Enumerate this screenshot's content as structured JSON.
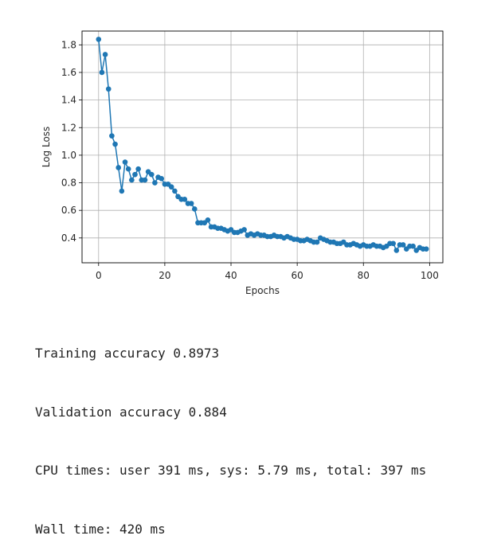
{
  "chart_data": {
    "type": "line",
    "title": "",
    "xlabel": "Epochs",
    "ylabel": "Log Loss",
    "xlim": [
      -5,
      104
    ],
    "ylim": [
      0.22,
      1.9
    ],
    "xticks": [
      0,
      20,
      40,
      60,
      80,
      100
    ],
    "yticks": [
      0.4,
      0.6,
      0.8,
      1.0,
      1.2,
      1.4,
      1.6,
      1.8
    ],
    "xtick_labels": [
      "0",
      "20",
      "40",
      "60",
      "80",
      "100"
    ],
    "ytick_labels": [
      "0.4",
      "0.6",
      "0.8",
      "1.0",
      "1.2",
      "1.4",
      "1.6",
      "1.8"
    ],
    "grid": true,
    "legend": "none",
    "markers": true,
    "color": "#1f77b4",
    "x": [
      0,
      1,
      2,
      3,
      4,
      5,
      6,
      7,
      8,
      9,
      10,
      11,
      12,
      13,
      14,
      15,
      16,
      17,
      18,
      19,
      20,
      21,
      22,
      23,
      24,
      25,
      26,
      27,
      28,
      29,
      30,
      31,
      32,
      33,
      34,
      35,
      36,
      37,
      38,
      39,
      40,
      41,
      42,
      43,
      44,
      45,
      46,
      47,
      48,
      49,
      50,
      51,
      52,
      53,
      54,
      55,
      56,
      57,
      58,
      59,
      60,
      61,
      62,
      63,
      64,
      65,
      66,
      67,
      68,
      69,
      70,
      71,
      72,
      73,
      74,
      75,
      76,
      77,
      78,
      79,
      80,
      81,
      82,
      83,
      84,
      85,
      86,
      87,
      88,
      89,
      90,
      91,
      92,
      93,
      94,
      95,
      96,
      97,
      98,
      99
    ],
    "y": [
      1.84,
      1.6,
      1.73,
      1.48,
      1.14,
      1.08,
      0.91,
      0.74,
      0.95,
      0.9,
      0.82,
      0.86,
      0.9,
      0.82,
      0.82,
      0.88,
      0.86,
      0.8,
      0.84,
      0.83,
      0.79,
      0.79,
      0.77,
      0.74,
      0.7,
      0.68,
      0.68,
      0.65,
      0.65,
      0.61,
      0.51,
      0.51,
      0.51,
      0.53,
      0.48,
      0.48,
      0.47,
      0.47,
      0.46,
      0.45,
      0.46,
      0.44,
      0.44,
      0.45,
      0.46,
      0.42,
      0.43,
      0.42,
      0.43,
      0.42,
      0.42,
      0.41,
      0.41,
      0.42,
      0.41,
      0.41,
      0.4,
      0.41,
      0.4,
      0.39,
      0.39,
      0.38,
      0.38,
      0.39,
      0.38,
      0.37,
      0.37,
      0.4,
      0.39,
      0.38,
      0.37,
      0.37,
      0.36,
      0.36,
      0.37,
      0.35,
      0.35,
      0.36,
      0.35,
      0.34,
      0.35,
      0.34,
      0.34,
      0.35,
      0.34,
      0.34,
      0.33,
      0.34,
      0.36,
      0.36,
      0.31,
      0.35,
      0.35,
      0.32,
      0.34,
      0.34,
      0.31,
      0.33,
      0.32,
      0.32
    ]
  },
  "output": {
    "training_accuracy": "Training accuracy 0.8973",
    "validation_accuracy": "Validation accuracy 0.884",
    "cpu_times": "CPU times: user 391 ms, sys: 5.79 ms, total: 397 ms",
    "wall_time": "Wall time: 420 ms"
  }
}
